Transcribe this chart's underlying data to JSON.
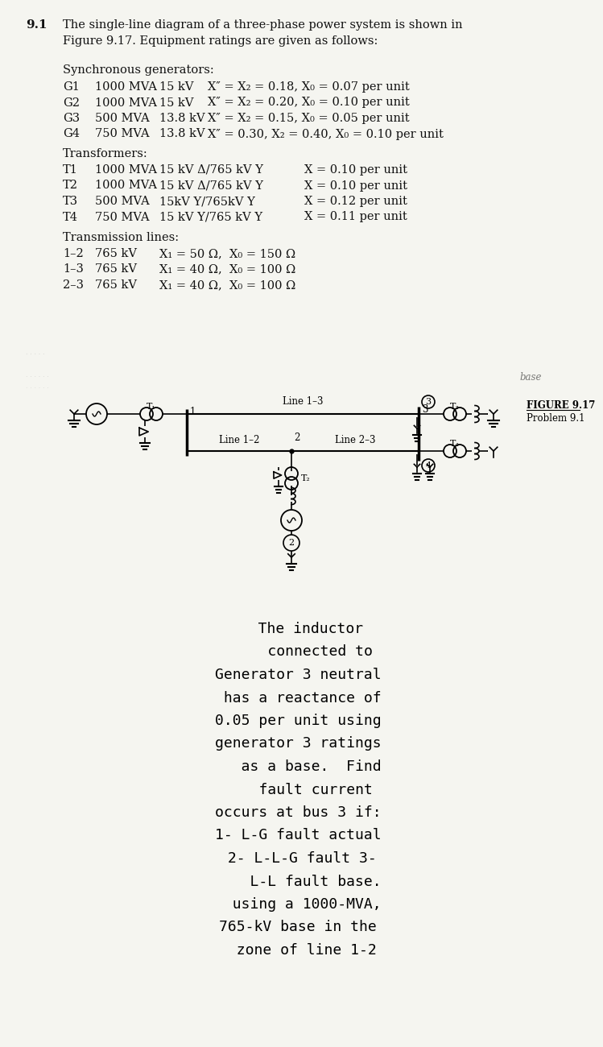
{
  "title_num": "9.1",
  "title_text": "The single-line diagram of a three-phase power system is shown in\nFigure 9.17. Equipment ratings are given as follows:",
  "section_generators": "Synchronous generators:",
  "gen_rows": [
    [
      "G1",
      "1000 MVA",
      "15 kV",
      "X″ = X₂ = 0.18, X₀ = 0.07 per unit"
    ],
    [
      "G2",
      "1000 MVA",
      "15 kV",
      "X″ = X₂ = 0.20, X₀ = 0.10 per unit"
    ],
    [
      "G3",
      "500 MVA",
      "13.8 kV",
      "X″ = X₂ = 0.15, X₀ = 0.05 per unit"
    ],
    [
      "G4",
      "750 MVA",
      "13.8 kV",
      "X″ = 0.30, X₂ = 0.40, X₀ = 0.10 per unit"
    ]
  ],
  "section_transformers": "Transformers:",
  "trans_rows": [
    [
      "T1",
      "1000 MVA",
      "15 kV Δ/765 kV Y",
      "X = 0.10 per unit"
    ],
    [
      "T2",
      "1000 MVA",
      "15 kV Δ/765 kV Y",
      "X = 0.10 per unit"
    ],
    [
      "T3",
      "500 MVA",
      "15kV Y/765kV Y",
      "X = 0.12 per unit"
    ],
    [
      "T4",
      "750 MVA",
      "15 kV Y/765 kV Y",
      "X = 0.11 per unit"
    ]
  ],
  "section_lines": "Transmission lines:",
  "line_rows": [
    [
      "1–2",
      "765 kV",
      "X₁ = 50 Ω,  X₀ = 150 Ω"
    ],
    [
      "1–3",
      "765 kV",
      "X₁ = 40 Ω,  X₀ = 100 Ω"
    ],
    [
      "2–3",
      "765 kV",
      "X₁ = 40 Ω,  X₀ = 100 Ω"
    ]
  ],
  "figure_label": "FIGURE 9.17",
  "problem_label": "Problem 9.1",
  "bottom_lines": [
    "   The inductor",
    "     connected to",
    "Generator 3 neutral",
    " has a reactance of",
    "0.05 per unit using",
    "generator 3 ratings",
    "   as a base.  Find",
    "    fault current",
    "occurs at bus 3 if:",
    "1- L-G fault actual",
    " 2- L-L-G fault 3-",
    "    L-L fault base.",
    "  using a 1000-MVA,",
    "765-kV base in the",
    "  zone of line 1-2"
  ],
  "bg_color": "#f5f5f0",
  "text_color": "#111111"
}
